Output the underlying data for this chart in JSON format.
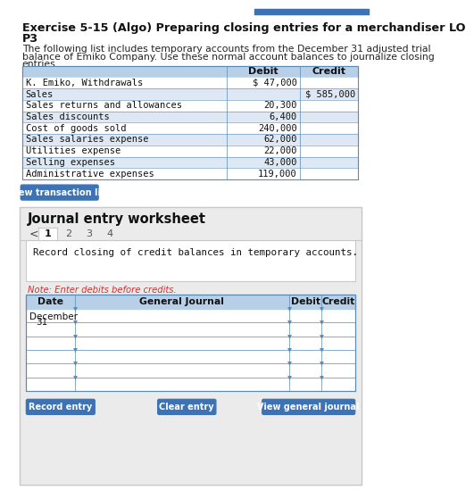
{
  "title_line1": "Exercise 5-15 (Algo) Preparing closing entries for a merchandiser LO",
  "title_line2": "P3",
  "desc_line1": "The following list includes temporary accounts from the December 31 adjusted trial",
  "desc_line2": "balance of Emiko Company. Use these normal account balances to journalize closing",
  "desc_line3": "entries.",
  "table_accounts": [
    "K. Emiko, Withdrawals",
    "Sales",
    "Sales returns and allowances",
    "Sales discounts",
    "Cost of goods sold",
    "Sales salaries expense",
    "Utilities expense",
    "Selling expenses",
    "Administrative expenses"
  ],
  "table_debits": [
    "$ 47,000",
    "",
    "20,300",
    "6,400",
    "240,000",
    "62,000",
    "22,000",
    "43,000",
    "119,000"
  ],
  "table_credits": [
    "",
    "$ 585,000",
    "",
    "",
    "",
    "",
    "",
    "",
    ""
  ],
  "header_bg": "#b8cfe8",
  "row_bg_alt": "#dde8f4",
  "row_bg_white": "#ffffff",
  "border_color": "#5b8ab5",
  "btn_color": "#3d72b4",
  "btn_text_color": "#ffffff",
  "note_color": "#cc3333",
  "worksheet_title": "Journal entry worksheet",
  "tab_labels": [
    "1",
    "2",
    "3",
    "4"
  ],
  "instruction": "Record closing of credit balances in temporary accounts.",
  "note_text": "Note: Enter debits before credits.",
  "journal_headers": [
    "Date",
    "General Journal",
    "Debit",
    "Credit"
  ],
  "journal_date_line1": "December",
  "journal_date_line2": "31",
  "num_journal_rows": 6,
  "btn_labels": [
    "Record entry",
    "Clear entry",
    "View general journal"
  ],
  "top_bar_color": "#3d72b4",
  "worksheet_bg": "#ebebeb",
  "worksheet_border": "#c8c8c8"
}
